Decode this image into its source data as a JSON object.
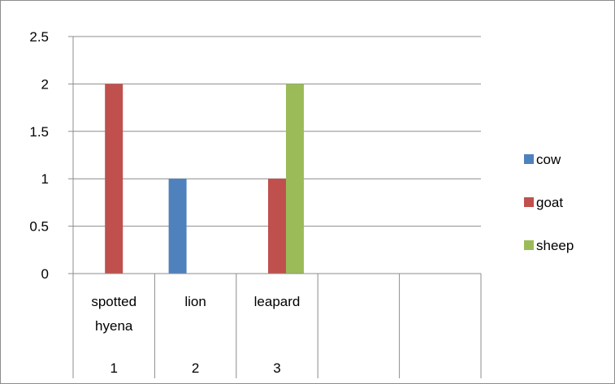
{
  "chart_data": {
    "type": "bar",
    "title": "",
    "xlabel": "",
    "ylabel": "",
    "ylim": [
      0,
      2.5
    ],
    "yticks": [
      "0",
      "0.5",
      "1",
      "1.5",
      "2",
      "2.5"
    ],
    "grid": true,
    "legend_position": "right",
    "categories": [
      {
        "label_lines": [
          "spotted",
          "hyena"
        ],
        "index": "1"
      },
      {
        "label_lines": [
          "lion"
        ],
        "index": "2"
      },
      {
        "label_lines": [
          "leapard"
        ],
        "index": "3"
      },
      {
        "label_lines": [],
        "index": ""
      },
      {
        "label_lines": [],
        "index": ""
      }
    ],
    "series": [
      {
        "name": "cow",
        "color": "#4f81bd",
        "values": [
          0,
          1,
          0,
          null,
          null
        ]
      },
      {
        "name": "goat",
        "color": "#c0504d",
        "values": [
          2,
          0,
          1,
          null,
          null
        ]
      },
      {
        "name": "sheep",
        "color": "#9bbb59",
        "values": [
          0,
          0,
          2,
          null,
          null
        ]
      }
    ]
  }
}
